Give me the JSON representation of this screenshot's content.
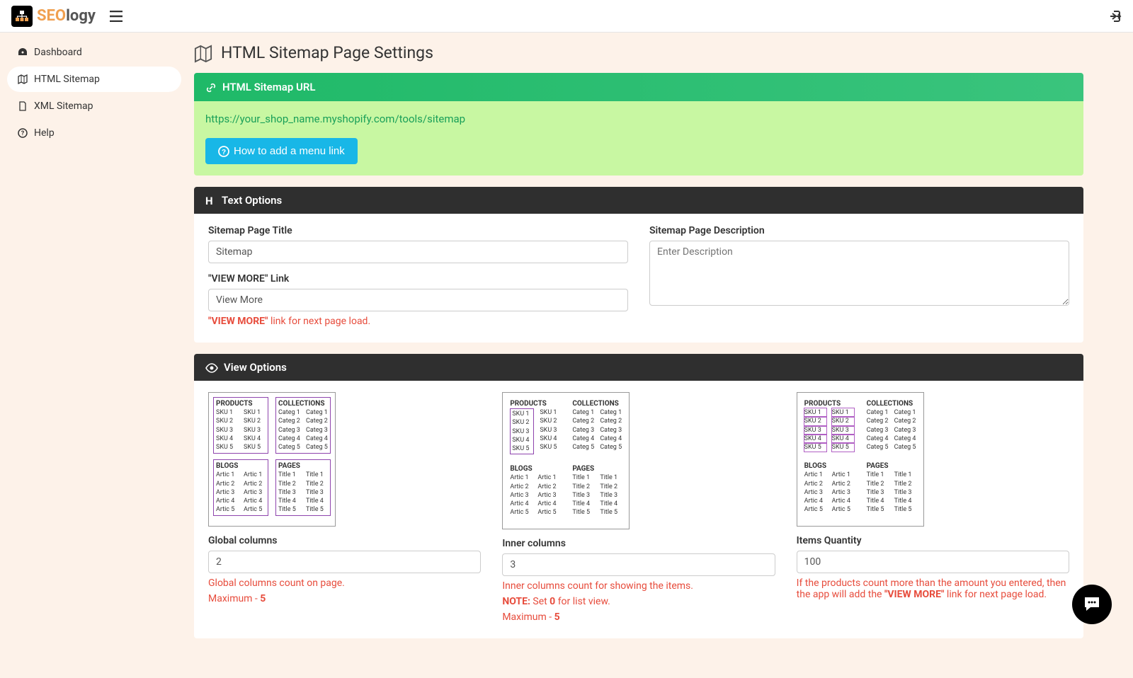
{
  "brand": {
    "a": "SEO",
    "b": "logy"
  },
  "sidebar": {
    "items": [
      {
        "label": "Dashboard"
      },
      {
        "label": "HTML Sitemap"
      },
      {
        "label": "XML Sitemap"
      },
      {
        "label": "Help"
      }
    ]
  },
  "page": {
    "title": "HTML Sitemap Page Settings"
  },
  "urlPanel": {
    "head": "HTML Sitemap URL",
    "url": "https://your_shop_name.myshopify.com/tools/sitemap",
    "howBtn": " How to add a menu link"
  },
  "textOptions": {
    "head": "Text Options",
    "titleLabel": "Sitemap Page Title",
    "titleValue": "Sitemap",
    "viewMoreLabel": "\"VIEW MORE\" Link",
    "viewMoreValue": "View More",
    "viewMoreHelpBold": "\"VIEW MORE\"",
    "viewMoreHelpRest": " link for next page load.",
    "descLabel": "Sitemap Page Description",
    "descPlaceholder": "Enter Description"
  },
  "viewOptions": {
    "head": "View Options",
    "preview": {
      "sections": [
        "PRODUCTS",
        "COLLECTIONS",
        "BLOGS",
        "PAGES"
      ],
      "sku": [
        "SKU 1",
        "SKU 2",
        "SKU 3",
        "SKU 4",
        "SKU 5"
      ],
      "cat": [
        "Categ 1",
        "Categ 2",
        "Categ 3",
        "Categ 4",
        "Categ 5"
      ],
      "art": [
        "Artic 1",
        "Artic 2",
        "Artic 3",
        "Artic 4",
        "Artic 5"
      ],
      "tit": [
        "Title 1",
        "Title 2",
        "Title 3",
        "Title 4",
        "Title 5"
      ]
    },
    "global": {
      "label": "Global columns",
      "value": "2",
      "help1": "Global columns count on page.",
      "help2a": "Maximum - ",
      "help2b": "5"
    },
    "inner": {
      "label": "Inner columns",
      "value": "3",
      "help1": "Inner columns count for showing the items.",
      "help2a": "NOTE:",
      "help2b": " Set ",
      "help2c": "0",
      "help2d": " for list view.",
      "help3a": "Maximum - ",
      "help3b": "5"
    },
    "items": {
      "label": "Items Quantity",
      "value": "100",
      "help1": "If the products count more than the amount you entered, then the app will add the ",
      "help1b": "\"VIEW MORE\"",
      "help1c": " link for next page load."
    }
  },
  "colors": {
    "accentGreen": "#1fb968",
    "bodyBg": "#fdf2e9",
    "blueBtn": "#18b7e7",
    "danger": "#e74c3c",
    "purple": "#8e44ad"
  }
}
